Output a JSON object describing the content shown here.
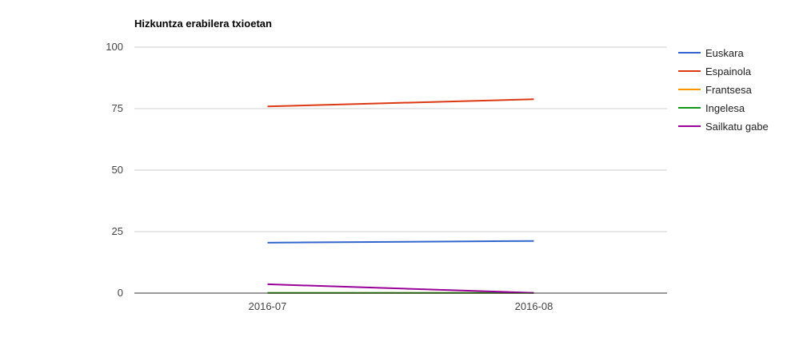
{
  "chart_data": {
    "type": "line",
    "title": "Hizkuntza erabilera txioetan",
    "xlabel": "",
    "ylabel": "",
    "categories": [
      "2016-07",
      "2016-08"
    ],
    "ylim": [
      0,
      100
    ],
    "yticks": [
      0,
      25,
      50,
      75,
      100
    ],
    "grid": true,
    "legend_position": "right",
    "series": [
      {
        "name": "Euskara",
        "color": "#3366cc",
        "values": [
          20.5,
          21.2
        ]
      },
      {
        "name": "Espainola",
        "color": "#dc3912",
        "values": [
          75.9,
          78.8
        ]
      },
      {
        "name": "Frantsesa",
        "color": "#ff9900",
        "values": [
          0.1,
          0.1
        ]
      },
      {
        "name": "Ingelesa",
        "color": "#109618",
        "values": [
          0.1,
          0.1
        ]
      },
      {
        "name": "Sailkatu gabe",
        "color": "#990099",
        "values": [
          3.6,
          0.1
        ]
      }
    ]
  }
}
